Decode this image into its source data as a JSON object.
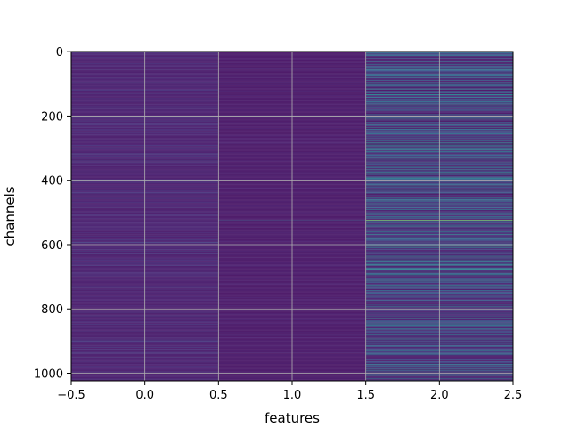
{
  "chart_data": {
    "type": "heatmap",
    "title": "",
    "xlabel": "features",
    "ylabel": "channels",
    "xlim": [
      -0.5,
      2.5
    ],
    "ylim": [
      1023.5,
      -0.5
    ],
    "n_rows": 1024,
    "columns": [
      0,
      1,
      2
    ],
    "xticks": [
      -0.5,
      0.0,
      0.5,
      1.0,
      1.5,
      2.0,
      2.5
    ],
    "xtick_labels": [
      "−0.5",
      "0.0",
      "0.5",
      "1.0",
      "1.5",
      "2.0",
      "2.5"
    ],
    "yticks": [
      0,
      200,
      400,
      600,
      800,
      1000
    ],
    "ytick_labels": [
      "0",
      "200",
      "400",
      "600",
      "800",
      "1000"
    ],
    "grid": true,
    "colormap": "viridis",
    "value_range": [
      0,
      1
    ],
    "column_base_levels": [
      0.08,
      0.06,
      0.05
    ],
    "column_variation": [
      0.12,
      0.06,
      0.45
    ],
    "highlight": {
      "channel": 523,
      "values": [
        0.12,
        0.3,
        0.95
      ]
    },
    "colors": {
      "grid": "#b0b0b0",
      "axis": "#000000",
      "background": "#ffffff"
    }
  }
}
